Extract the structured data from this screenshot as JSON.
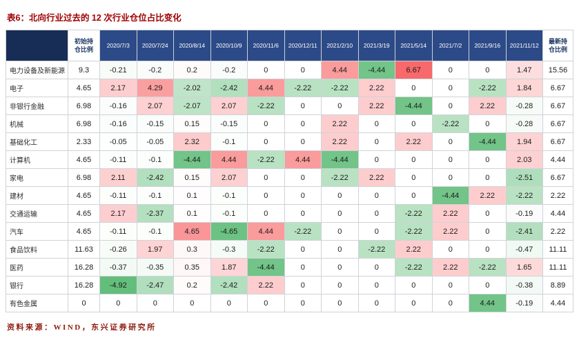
{
  "title": "表6：北向行业过去的 12 次行业仓位占比变化",
  "source": "资料来源：WIND，东兴证券研究所",
  "colors": {
    "title_color": "#A00000",
    "source_color": "#8E1B10",
    "corner_bg": "#182D56",
    "date_header_bg": "#2C4A87",
    "date_header_text": "#FFFFFF",
    "side_header_text": "#1F3864",
    "heat_positive": "#F8696B",
    "heat_negative": "#63BE7B"
  },
  "chart_data": {
    "type": "table",
    "title": "表6：北向行业过去的 12 次行业仓位占比变化",
    "columns": {
      "initial": "初始持仓比例",
      "dates": [
        "2020/7/3",
        "2020/7/24",
        "2020/8/14",
        "2020/10/9",
        "2020/11/6",
        "2020/12/11",
        "2021/2/10",
        "2021/3/19",
        "2021/5/14",
        "2021/7/2",
        "2021/9/16",
        "2021/11/12"
      ],
      "latest": "最新持仓比例"
    },
    "color_scale": {
      "pos_max": 6.67,
      "neg_min": -4.92
    },
    "cell_color_overrides": [
      {
        "row": "有色金属",
        "date_index": 10,
        "bg": "#72C488"
      }
    ],
    "rows": [
      {
        "name": "电力设备及新能源",
        "initial": "9.3",
        "changes": [
          "-0.21",
          "-0.2",
          "0.2",
          "-0.2",
          "0",
          "0",
          "4.44",
          "-4.44",
          "6.67",
          "0",
          "0",
          "1.47"
        ],
        "latest": "15.56"
      },
      {
        "name": "电子",
        "initial": "4.65",
        "changes": [
          "2.17",
          "4.29",
          "-2.02",
          "-2.42",
          "4.44",
          "-2.22",
          "-2.22",
          "2.22",
          "0",
          "0",
          "-2.22",
          "1.84"
        ],
        "latest": "6.67"
      },
      {
        "name": "非银行金融",
        "initial": "6.98",
        "changes": [
          "-0.16",
          "2.07",
          "-2.07",
          "2.07",
          "-2.22",
          "0",
          "0",
          "2.22",
          "-4.44",
          "0",
          "2.22",
          "-0.28"
        ],
        "latest": "6.67"
      },
      {
        "name": "机械",
        "initial": "6.98",
        "changes": [
          "-0.16",
          "-0.15",
          "0.15",
          "-0.15",
          "0",
          "0",
          "2.22",
          "0",
          "0",
          "-2.22",
          "0",
          "-0.28"
        ],
        "latest": "6.67"
      },
      {
        "name": "基础化工",
        "initial": "2.33",
        "changes": [
          "-0.05",
          "-0.05",
          "2.32",
          "-0.1",
          "0",
          "0",
          "2.22",
          "0",
          "2.22",
          "0",
          "-4.44",
          "1.94"
        ],
        "latest": "6.67"
      },
      {
        "name": "计算机",
        "initial": "4.65",
        "changes": [
          "-0.11",
          "-0.1",
          "-4.44",
          "4.44",
          "-2.22",
          "4.44",
          "-4.44",
          "0",
          "0",
          "0",
          "0",
          "2.03"
        ],
        "latest": "4.44"
      },
      {
        "name": "家电",
        "initial": "6.98",
        "changes": [
          "2.11",
          "-2.42",
          "0.15",
          "2.07",
          "0",
          "0",
          "-2.22",
          "2.22",
          "0",
          "0",
          "0",
          "-2.51"
        ],
        "latest": "6.67"
      },
      {
        "name": "建材",
        "initial": "4.65",
        "changes": [
          "-0.11",
          "-0.1",
          "0.1",
          "-0.1",
          "0",
          "0",
          "0",
          "0",
          "0",
          "-4.44",
          "2.22",
          "-2.22"
        ],
        "latest": "2.22"
      },
      {
        "name": "交通运输",
        "initial": "4.65",
        "changes": [
          "2.17",
          "-2.37",
          "0.1",
          "-0.1",
          "0",
          "0",
          "0",
          "0",
          "-2.22",
          "2.22",
          "0",
          "-0.19"
        ],
        "latest": "4.44"
      },
      {
        "name": "汽车",
        "initial": "4.65",
        "changes": [
          "-0.11",
          "-0.1",
          "4.65",
          "-4.65",
          "4.44",
          "-2.22",
          "0",
          "0",
          "-2.22",
          "2.22",
          "0",
          "-2.41"
        ],
        "latest": "2.22"
      },
      {
        "name": "食品饮料",
        "initial": "11.63",
        "changes": [
          "-0.26",
          "1.97",
          "0.3",
          "-0.3",
          "-2.22",
          "0",
          "0",
          "-2.22",
          "2.22",
          "0",
          "0",
          "-0.47"
        ],
        "latest": "11.11"
      },
      {
        "name": "医药",
        "initial": "16.28",
        "changes": [
          "-0.37",
          "-0.35",
          "0.35",
          "1.87",
          "-4.44",
          "0",
          "0",
          "0",
          "-2.22",
          "2.22",
          "-2.22",
          "1.65"
        ],
        "latest": "11.11"
      },
      {
        "name": "银行",
        "initial": "16.28",
        "changes": [
          "-4.92",
          "-2.47",
          "0.2",
          "-2.42",
          "2.22",
          "0",
          "0",
          "0",
          "0",
          "0",
          "0",
          "-0.38"
        ],
        "latest": "8.89"
      },
      {
        "name": "有色金属",
        "initial": "0",
        "changes": [
          "0",
          "0",
          "0",
          "0",
          "0",
          "0",
          "0",
          "0",
          "0",
          "0",
          "4.44",
          "-0.19"
        ],
        "latest": "4.44"
      }
    ]
  }
}
